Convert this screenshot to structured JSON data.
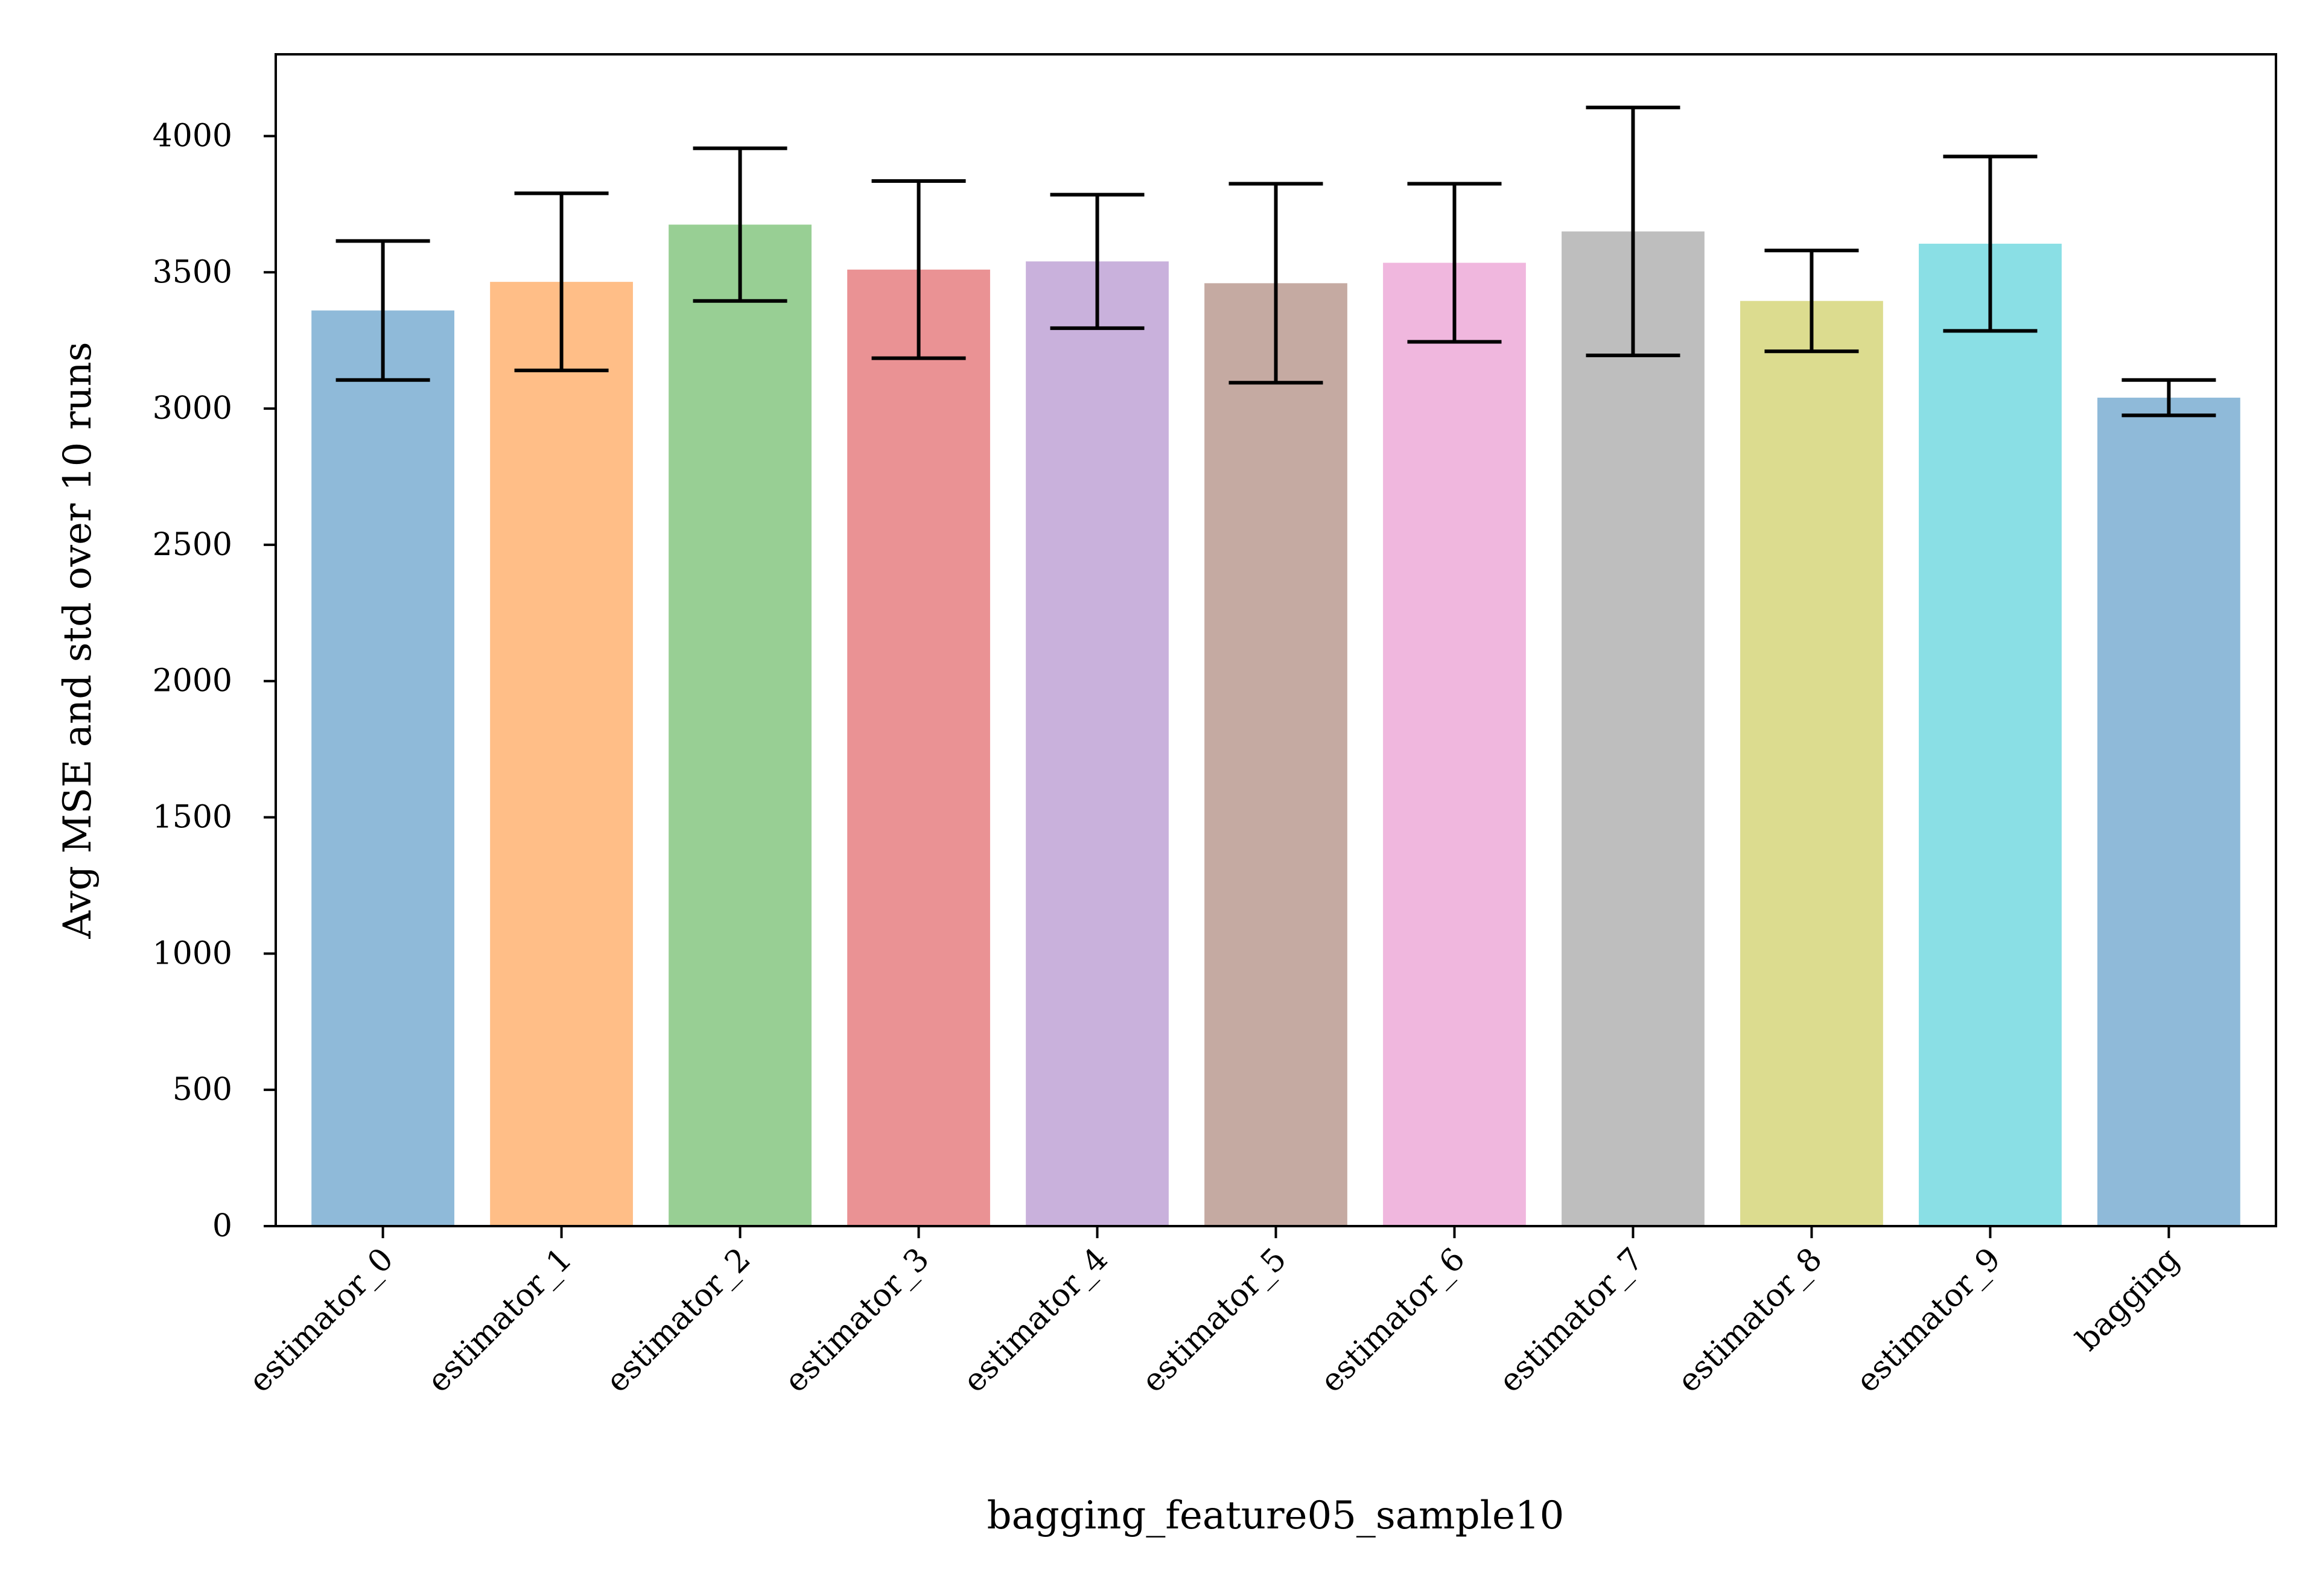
{
  "chart_data": {
    "type": "bar",
    "title": "",
    "xlabel": "bagging_feature05_sample10",
    "ylabel": "Avg MSE and std over 10 runs",
    "categories": [
      "estimator_0",
      "estimator_1",
      "estimator_2",
      "estimator_3",
      "estimator_4",
      "estimator_5",
      "estimator_6",
      "estimator_7",
      "estimator_8",
      "estimator_9",
      "bagging"
    ],
    "values": [
      3360,
      3465,
      3675,
      3510,
      3540,
      3460,
      3535,
      3650,
      3395,
      3605,
      3040
    ],
    "errors": [
      255,
      325,
      280,
      325,
      245,
      365,
      290,
      455,
      185,
      320,
      65
    ],
    "colors": [
      "#8fbad9",
      "#ffbe87",
      "#98cf94",
      "#ea9294",
      "#c9b1dc",
      "#c5aaa2",
      "#f0b7de",
      "#bebebe",
      "#dcdc8f",
      "#8adfe5",
      "#8fbad9"
    ],
    "error_color": "#000000",
    "ylim": [
      0,
      4300
    ],
    "yticks": [
      0,
      500,
      1000,
      1500,
      2000,
      2500,
      3000,
      3500,
      4000
    ],
    "grid": false,
    "legend": false
  }
}
